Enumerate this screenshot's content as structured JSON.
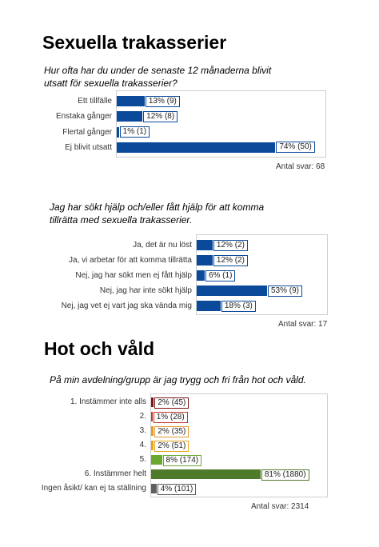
{
  "headings": [
    "Sexuella trakasserier",
    "Hot och våld"
  ],
  "chart_data": [
    {
      "type": "bar",
      "orientation": "horizontal",
      "title": "Hur ofta  har du under de senaste 12 månaderna blivit utsatt för sexuella trakasserier?",
      "categories": [
        "Ett tillfälle",
        "Enstaka gånger",
        "Flertal gånger",
        "Ej blivit utsatt"
      ],
      "values": [
        13,
        12,
        1,
        74
      ],
      "value_labels": [
        "13% (9)",
        "12% (8)",
        "1% (1)",
        "74% (50)"
      ],
      "color": "#0b4a9a",
      "note": "Antal svar: 68"
    },
    {
      "type": "bar",
      "orientation": "horizontal",
      "title": "Jag har sökt hjälp och/eller fått hjälp för att komma tillrätta med sexuella trakasserier.",
      "categories": [
        "Ja, det är nu löst",
        "Ja, vi arbetar för att komma tillrätta",
        "Nej, jag har sökt men ej fått hjälp",
        "Nej, jag har inte sökt hjälp",
        "Nej, jag vet ej vart jag ska vända mig"
      ],
      "values": [
        12,
        12,
        6,
        53,
        18
      ],
      "value_labels": [
        "12% (2)",
        "12% (2)",
        "6% (1)",
        "53% (9)",
        "18% (3)"
      ],
      "color": "#0b4a9a",
      "note": "Antal svar: 17"
    },
    {
      "type": "bar",
      "orientation": "horizontal",
      "title": "På min avdelning/grupp är jag trygg och fri från hot och våld.",
      "categories": [
        "1. Instämmer inte alls",
        "2.",
        "3.",
        "4.",
        "5.",
        "6. Instämmer helt",
        "Ingen åsikt/ kan ej ta ställning"
      ],
      "values": [
        2,
        1,
        2,
        2,
        8,
        81,
        4
      ],
      "value_labels": [
        "2% (45)",
        "1% (28)",
        "2% (35)",
        "2% (51)",
        "8% (174)",
        "81% (1880)",
        "4% (101)"
      ],
      "colors": [
        "#7d1515",
        "#c0392b",
        "#e59a2c",
        "#e8a317",
        "#6aa82e",
        "#4e7a2a",
        "#5f5f5f"
      ],
      "note": "Antal svar: 2314"
    }
  ]
}
